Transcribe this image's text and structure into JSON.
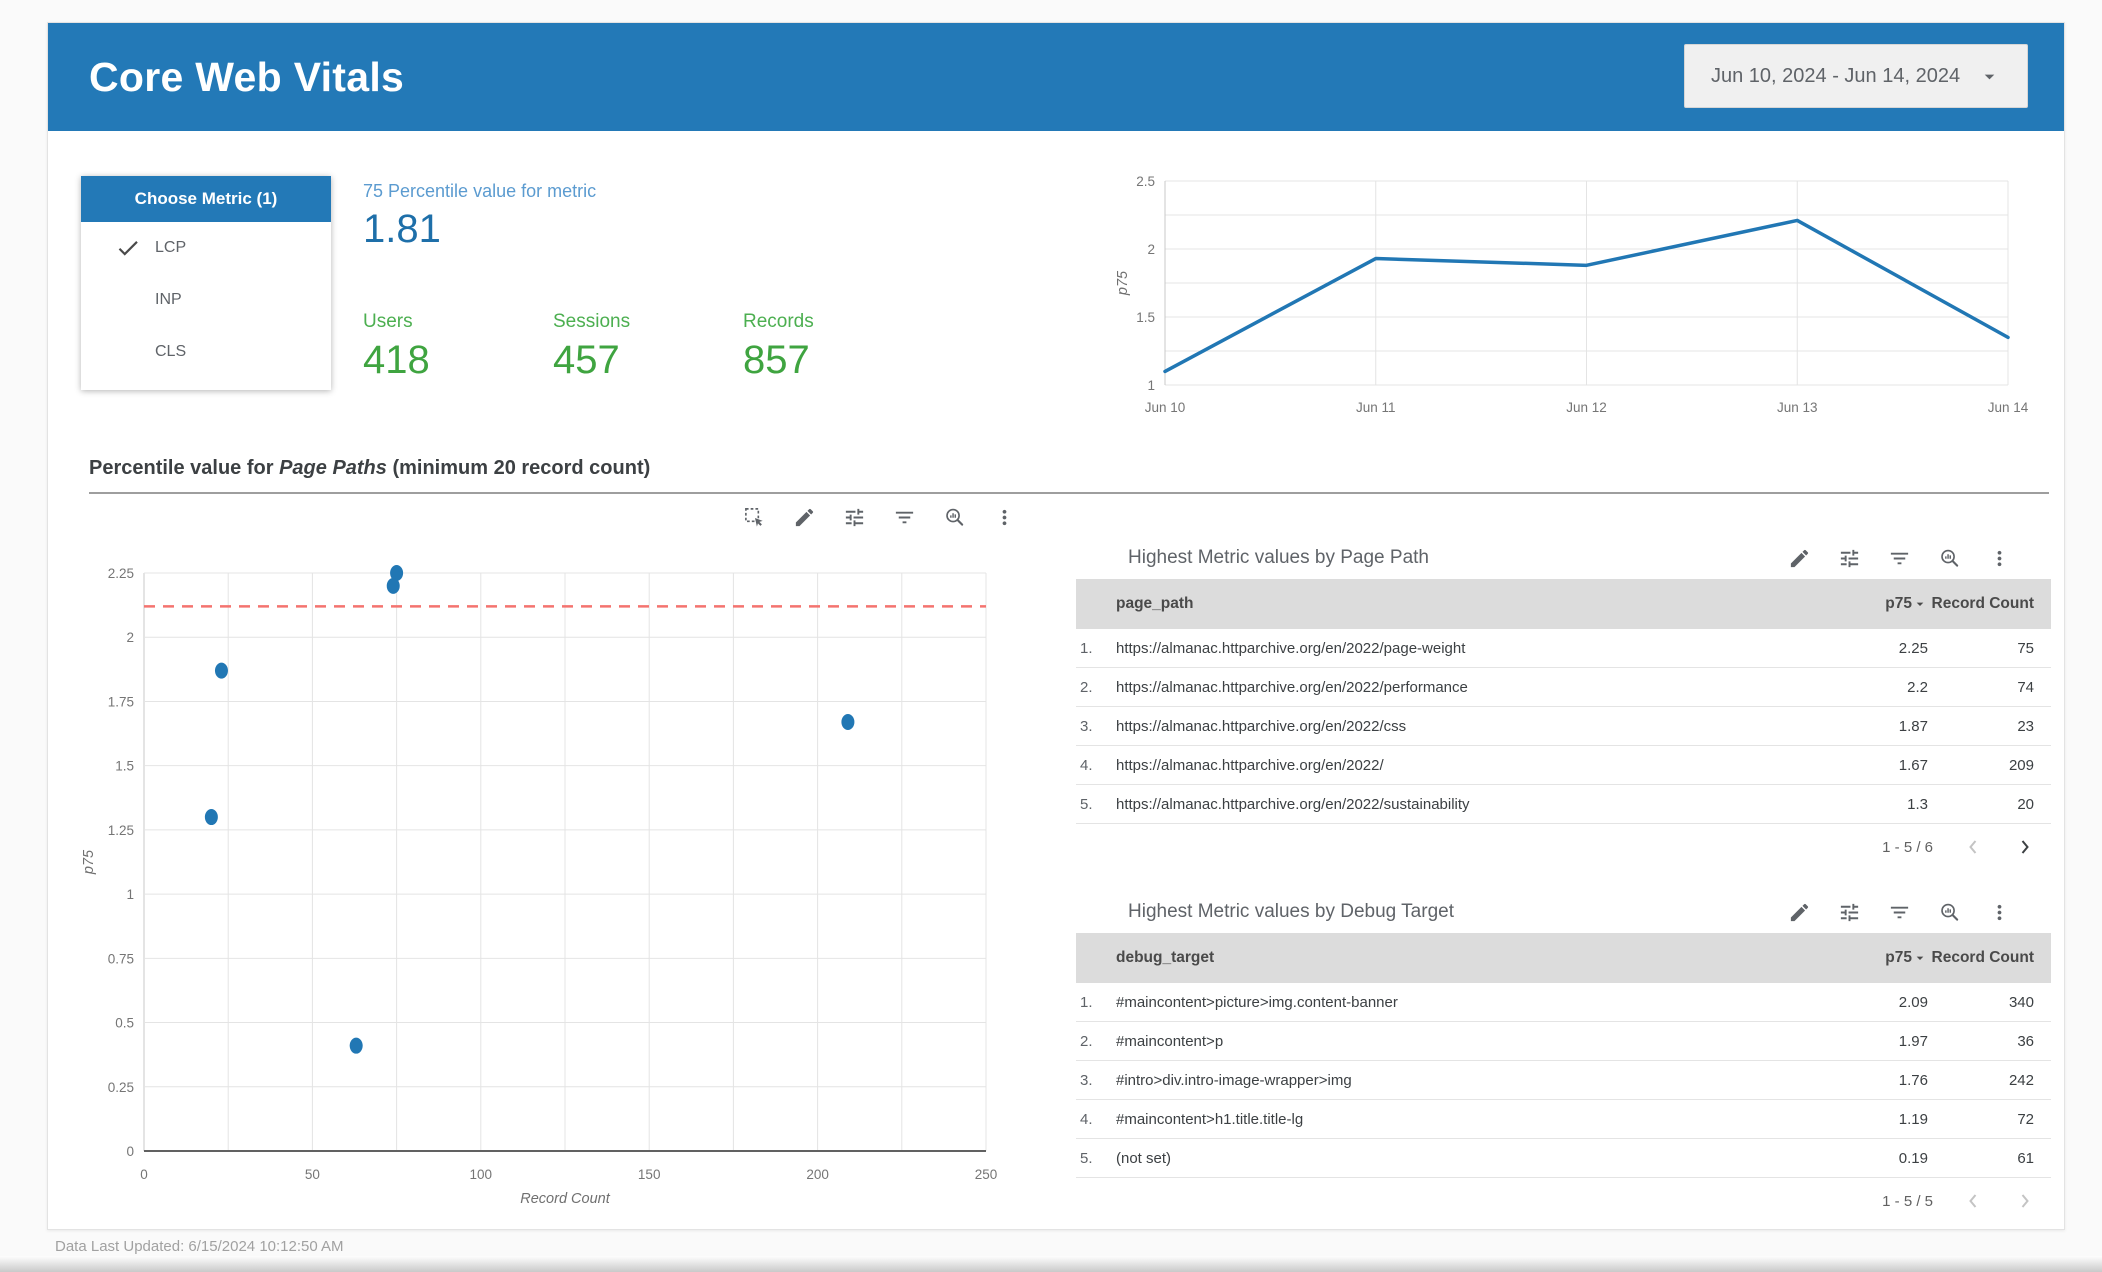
{
  "header": {
    "title": "Core Web Vitals",
    "date_range": "Jun 10, 2024 - Jun 14, 2024"
  },
  "metric_selector": {
    "title": "Choose Metric (1)",
    "options": [
      {
        "label": "LCP",
        "selected": true
      },
      {
        "label": "INP",
        "selected": false
      },
      {
        "label": "CLS",
        "selected": false
      }
    ]
  },
  "scorecards": {
    "primary_label": "75 Percentile value for metric",
    "primary_value": "1.81",
    "kpis": [
      {
        "label": "Users",
        "value": "418"
      },
      {
        "label": "Sessions",
        "value": "457"
      },
      {
        "label": "Records",
        "value": "857"
      }
    ]
  },
  "section": {
    "title_prefix": "Percentile value for ",
    "title_italic": "Page Paths",
    "title_suffix": " (minimum 20 record count)"
  },
  "chart_data": [
    {
      "type": "line",
      "x": [
        "Jun 10",
        "Jun 11",
        "Jun 12",
        "Jun 13",
        "Jun 14"
      ],
      "series": [
        {
          "name": "p75",
          "values": [
            1.1,
            1.93,
            1.88,
            2.21,
            1.35
          ]
        }
      ],
      "ylabel": "p75",
      "ylim": [
        1,
        2.5
      ],
      "yticks": [
        1,
        1.5,
        2,
        2.5
      ],
      "grid": true,
      "legend_position": "none"
    },
    {
      "type": "scatter",
      "xlabel": "Record Count",
      "ylabel": "p75",
      "xlim": [
        0,
        250
      ],
      "ylim": [
        0,
        2.25
      ],
      "xticks": [
        0,
        50,
        100,
        150,
        200,
        250
      ],
      "yticks": [
        0,
        0.25,
        0.5,
        0.75,
        1,
        1.25,
        1.5,
        1.75,
        2,
        2.25
      ],
      "points": [
        {
          "x": 75,
          "y": 2.25
        },
        {
          "x": 74,
          "y": 2.2
        },
        {
          "x": 23,
          "y": 1.87
        },
        {
          "x": 209,
          "y": 1.67
        },
        {
          "x": 20,
          "y": 1.3
        },
        {
          "x": 63,
          "y": 0.41
        }
      ],
      "reference_line_y": 2.12,
      "grid": true
    }
  ],
  "tables": [
    {
      "title": "Highest Metric values by Page Path",
      "columns": [
        "page_path",
        "p75",
        "Record Count"
      ],
      "rows": [
        [
          "1.",
          "https://almanac.httparchive.org/en/2022/page-weight",
          "2.25",
          "75"
        ],
        [
          "2.",
          "https://almanac.httparchive.org/en/2022/performance",
          "2.2",
          "74"
        ],
        [
          "3.",
          "https://almanac.httparchive.org/en/2022/css",
          "1.87",
          "23"
        ],
        [
          "4.",
          "https://almanac.httparchive.org/en/2022/",
          "1.67",
          "209"
        ],
        [
          "5.",
          "https://almanac.httparchive.org/en/2022/sustainability",
          "1.3",
          "20"
        ]
      ],
      "pagination": "1 - 5 / 6",
      "prev_enabled": false,
      "next_enabled": true
    },
    {
      "title": "Highest Metric values by Debug Target",
      "columns": [
        "debug_target",
        "p75",
        "Record Count"
      ],
      "rows": [
        [
          "1.",
          "#maincontent>picture>img.content-banner",
          "2.09",
          "340"
        ],
        [
          "2.",
          "#maincontent>p",
          "1.97",
          "36"
        ],
        [
          "3.",
          "#intro>div.intro-image-wrapper>img",
          "1.76",
          "242"
        ],
        [
          "4.",
          "#maincontent>h1.title.title-lg",
          "1.19",
          "72"
        ],
        [
          "5.",
          "(not set)",
          "0.19",
          "61"
        ]
      ],
      "pagination": "1 - 5 / 5",
      "prev_enabled": false,
      "next_enabled": false
    }
  ],
  "footer": {
    "last_updated": "Data Last Updated: 6/15/2024 10:12:50 AM"
  },
  "colors": {
    "header_bg": "#2379b7",
    "accent_blue": "#2177b4",
    "score_label_blue": "#5b9bd0",
    "score_value_blue": "#1e6fa9",
    "kpi_green": "#3fa440",
    "reference_red": "#f4736f",
    "table_header_bg": "#dcdcdc"
  }
}
